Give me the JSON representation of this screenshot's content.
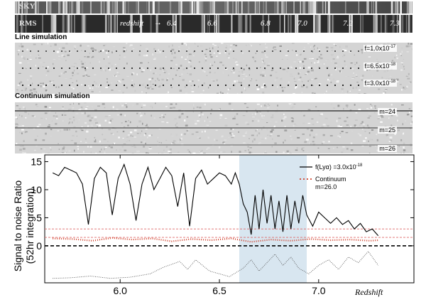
{
  "bands": {
    "sky_label": "SKY",
    "rms_label": "RMS",
    "redshift_label": "redshift",
    "arrow": "→",
    "redshift_marks": [
      "6.4",
      "6.6",
      "6.8",
      "7.0",
      "7.2",
      "7.3"
    ]
  },
  "line_sim": {
    "title": "Line simulation",
    "panels": [
      {
        "label_prefix": "f=1.0x10",
        "label_exp": "-17"
      },
      {
        "label_prefix": "f=6.5x10",
        "label_exp": "-18"
      },
      {
        "label_prefix": "f=3.0x10",
        "label_exp": "-18"
      }
    ]
  },
  "cont_sim": {
    "title": "Continuum simulation",
    "panels": [
      {
        "label": "m=24"
      },
      {
        "label": "m=25"
      },
      {
        "label": "m=26"
      }
    ]
  },
  "chart_data": {
    "type": "line",
    "xlabel": "Redshift",
    "ylabel": "Signal to noise Ratio",
    "ylabel2": "(52hr integration)",
    "xlim": [
      5.62,
      7.48
    ],
    "ylim": [
      -6.6,
      16.2
    ],
    "xticks": [
      "6.0",
      "6.5",
      "7.0"
    ],
    "xtick_values": [
      6.0,
      6.5,
      7.0
    ],
    "yticks": [
      "15",
      "10",
      "5",
      "0"
    ],
    "ytick_values": [
      15,
      10,
      5,
      0
    ],
    "shaded_region": [
      6.6,
      6.94
    ],
    "threshold": 3,
    "legend_position": "top-right",
    "legend": [
      {
        "label_main": "f(Lyα) =3.0x10",
        "label_exp": "-18",
        "color": "#000000",
        "style": "solid"
      },
      {
        "label_main": "Continuum",
        "label_sub": "m=26.0",
        "color": "#d0402a",
        "style": "dotted"
      }
    ],
    "series": [
      {
        "name": "f(Lyα) =3.0x10-18",
        "color": "#000000",
        "x": [
          5.66,
          5.69,
          5.72,
          5.75,
          5.78,
          5.81,
          5.84,
          5.87,
          5.9,
          5.93,
          5.96,
          5.99,
          6.02,
          6.05,
          6.08,
          6.11,
          6.14,
          6.17,
          6.2,
          6.23,
          6.26,
          6.29,
          6.32,
          6.35,
          6.38,
          6.41,
          6.44,
          6.47,
          6.5,
          6.53,
          6.56,
          6.58,
          6.6,
          6.62,
          6.64,
          6.66,
          6.68,
          6.7,
          6.72,
          6.74,
          6.76,
          6.78,
          6.8,
          6.82,
          6.84,
          6.86,
          6.88,
          6.9,
          6.92,
          6.94,
          6.97,
          7.0,
          7.03,
          7.06,
          7.09,
          7.12,
          7.15,
          7.18,
          7.21,
          7.24,
          7.27,
          7.3
        ],
        "y": [
          13,
          12.5,
          14,
          13.5,
          13,
          11,
          3.8,
          12,
          14,
          13,
          5.5,
          12,
          14.5,
          11,
          4.5,
          11,
          14,
          10,
          12,
          14,
          12.5,
          7,
          13,
          3.5,
          12,
          13.5,
          11,
          12,
          13,
          12.5,
          11,
          13,
          11,
          7.5,
          6,
          2,
          9,
          3,
          10,
          4,
          9,
          3,
          8,
          2.5,
          9,
          3,
          8,
          4,
          9,
          5.5,
          3.5,
          6,
          5,
          4,
          5,
          3.8,
          4.5,
          3,
          4,
          2.5,
          3,
          1.8
        ]
      },
      {
        "name": "Continuum m=26.0",
        "color": "#d0402a",
        "x": [
          5.66,
          5.76,
          5.86,
          5.96,
          6.06,
          6.16,
          6.26,
          6.36,
          6.46,
          6.56,
          6.66,
          6.76,
          6.86,
          6.96,
          7.06,
          7.16,
          7.26,
          7.3
        ],
        "y": [
          1.3,
          1.2,
          0.9,
          1.4,
          1.1,
          1.3,
          0.8,
          1.2,
          1.0,
          1.3,
          0.7,
          1.1,
          0.9,
          1.2,
          1.0,
          1.1,
          0.9,
          1.0
        ]
      },
      {
        "name": "sky",
        "color": "#555555",
        "x": [
          5.66,
          5.75,
          5.85,
          5.95,
          6.05,
          6.15,
          6.22,
          6.3,
          6.34,
          6.38,
          6.45,
          6.55,
          6.62,
          6.66,
          6.7,
          6.74,
          6.78,
          6.82,
          6.86,
          6.9,
          6.95,
          7.0,
          7.05,
          7.1,
          7.15,
          7.2,
          7.25,
          7.3
        ],
        "y": [
          -5.8,
          -5.7,
          -5.4,
          -5.8,
          -5.6,
          -5.0,
          -3.8,
          -2.8,
          -4.2,
          -2.5,
          -4.5,
          -5.5,
          -4,
          -2.5,
          -4.5,
          -3,
          -1.5,
          -3.5,
          -2,
          -4,
          -5,
          -3.5,
          -2.5,
          -4.2,
          -2,
          -3,
          -1,
          -3.5
        ]
      }
    ]
  }
}
